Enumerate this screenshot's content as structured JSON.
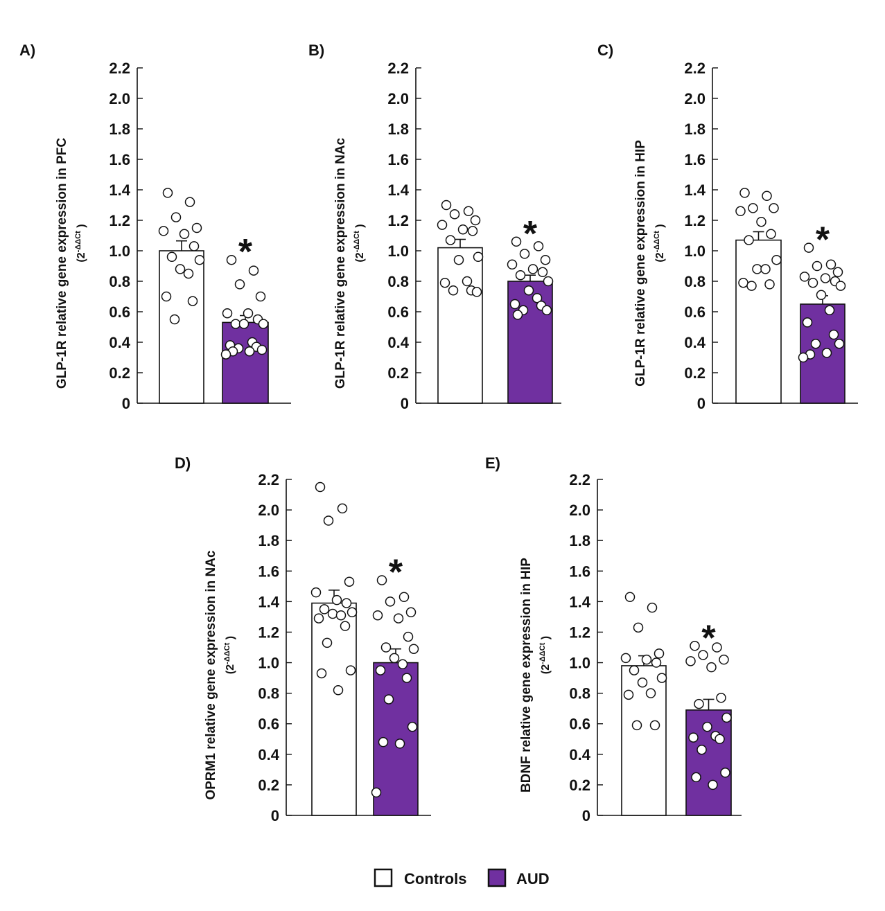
{
  "chart_data": [
    {
      "type": "bar",
      "panel_label": "A)",
      "ylabel": "GLP-1R relative gene expression in PFC",
      "yunit_base": "(2",
      "yunit_sup": "-ΔΔCt",
      "yunit_close": " )",
      "ylim": [
        0,
        2.2
      ],
      "yticks": [
        "0",
        "0.2",
        "0.4",
        "0.6",
        "0.8",
        "1.0",
        "1.2",
        "1.4",
        "1.6",
        "1.8",
        "2.0",
        "2.2"
      ],
      "categories": [
        "Controls",
        "AUD"
      ],
      "values": [
        1.0,
        0.53
      ],
      "sem": [
        0.065,
        0.045
      ],
      "significance": [
        null,
        "*"
      ],
      "points": [
        [
          1.38,
          1.32,
          1.22,
          1.15,
          1.13,
          1.11,
          1.03,
          0.96,
          0.94,
          0.88,
          0.85,
          0.7,
          0.67,
          0.55
        ],
        [
          0.94,
          0.87,
          0.78,
          0.7,
          0.59,
          0.59,
          0.55,
          0.52,
          0.52,
          0.52,
          0.4,
          0.38,
          0.37,
          0.36,
          0.35,
          0.34,
          0.34,
          0.32
        ]
      ]
    },
    {
      "type": "bar",
      "panel_label": "B)",
      "ylabel": "GLP-1R relative gene expression in NAc",
      "yunit_base": "(2",
      "yunit_sup": "-ΔΔCt",
      "yunit_close": " )",
      "ylim": [
        0,
        2.2
      ],
      "yticks": [
        "0",
        "0.2",
        "0.4",
        "0.6",
        "0.8",
        "1.0",
        "1.2",
        "1.4",
        "1.6",
        "1.8",
        "2.0",
        "2.2"
      ],
      "categories": [
        "Controls",
        "AUD"
      ],
      "values": [
        1.02,
        0.8
      ],
      "sem": [
        0.055,
        0.04
      ],
      "significance": [
        null,
        "*"
      ],
      "points": [
        [
          1.3,
          1.26,
          1.24,
          1.2,
          1.17,
          1.14,
          1.13,
          1.07,
          0.96,
          0.94,
          0.8,
          0.79,
          0.74,
          0.74,
          0.73
        ],
        [
          1.06,
          1.03,
          0.98,
          0.94,
          0.91,
          0.88,
          0.86,
          0.84,
          0.8,
          0.74,
          0.69,
          0.65,
          0.64,
          0.61,
          0.61,
          0.58
        ]
      ]
    },
    {
      "type": "bar",
      "panel_label": "C)",
      "ylabel": "GLP-1R relative gene expression in HIP",
      "yunit_base": "(2",
      "yunit_sup": "-ΔΔCt",
      "yunit_close": " )",
      "ylim": [
        0,
        2.2
      ],
      "yticks": [
        "0",
        "0.2",
        "0.4",
        "0.6",
        "0.8",
        "1.0",
        "1.2",
        "1.4",
        "1.6",
        "1.8",
        "2.0",
        "2.2"
      ],
      "categories": [
        "Controls",
        "AUD"
      ],
      "values": [
        1.07,
        0.65
      ],
      "sem": [
        0.055,
        0.055
      ],
      "significance": [
        null,
        "*"
      ],
      "points": [
        [
          1.38,
          1.36,
          1.28,
          1.28,
          1.26,
          1.19,
          1.11,
          1.07,
          0.94,
          0.88,
          0.88,
          0.79,
          0.78,
          0.77
        ],
        [
          1.02,
          0.91,
          0.9,
          0.86,
          0.83,
          0.82,
          0.8,
          0.79,
          0.77,
          0.71,
          0.61,
          0.53,
          0.45,
          0.39,
          0.39,
          0.32,
          0.33,
          0.3
        ]
      ]
    },
    {
      "type": "bar",
      "panel_label": "D)",
      "ylabel": "OPRM1 relative gene expression in NAc",
      "yunit_base": "(2",
      "yunit_sup": "-ΔΔCt",
      "yunit_close": " )",
      "ylim": [
        0,
        2.2
      ],
      "yticks": [
        "0",
        "0.2",
        "0.4",
        "0.6",
        "0.8",
        "1.0",
        "1.2",
        "1.4",
        "1.6",
        "1.8",
        "2.0",
        "2.2"
      ],
      "categories": [
        "Controls",
        "AUD"
      ],
      "values": [
        1.39,
        1.0
      ],
      "sem": [
        0.085,
        0.09
      ],
      "significance": [
        null,
        "*"
      ],
      "points": [
        [
          2.15,
          2.01,
          1.93,
          1.53,
          1.46,
          1.41,
          1.39,
          1.35,
          1.33,
          1.32,
          1.31,
          1.29,
          1.24,
          1.13,
          0.95,
          0.93,
          0.82
        ],
        [
          1.54,
          1.43,
          1.4,
          1.33,
          1.31,
          1.29,
          1.17,
          1.1,
          1.09,
          1.03,
          0.99,
          0.95,
          0.9,
          0.76,
          0.58,
          0.48,
          0.47,
          0.15
        ]
      ]
    },
    {
      "type": "bar",
      "panel_label": "E)",
      "ylabel": "BDNF relative gene expression in HIP",
      "yunit_base": "(2",
      "yunit_sup": "-ΔΔCt",
      "yunit_close": " )",
      "ylim": [
        0,
        2.2
      ],
      "yticks": [
        "0",
        "0.2",
        "0.4",
        "0.6",
        "0.8",
        "1.0",
        "1.2",
        "1.4",
        "1.6",
        "1.8",
        "2.0",
        "2.2"
      ],
      "categories": [
        "Controls",
        "AUD"
      ],
      "values": [
        0.98,
        0.69
      ],
      "sem": [
        0.065,
        0.07
      ],
      "significance": [
        null,
        "*"
      ],
      "points": [
        [
          1.43,
          1.36,
          1.23,
          1.06,
          1.03,
          1.02,
          1.0,
          0.95,
          0.9,
          0.87,
          0.8,
          0.79,
          0.59,
          0.59
        ],
        [
          1.11,
          1.1,
          1.05,
          1.02,
          1.01,
          0.97,
          0.77,
          0.73,
          0.64,
          0.58,
          0.52,
          0.51,
          0.5,
          0.43,
          0.28,
          0.25,
          0.2
        ]
      ]
    }
  ],
  "legend": {
    "entries": [
      {
        "label": "Controls",
        "color": "#ffffff"
      },
      {
        "label": "AUD",
        "color": "#7030a0"
      }
    ],
    "placement": "bottom-center"
  },
  "colors": {
    "controls": "#ffffff",
    "aud": "#7030a0",
    "stroke": "#111111"
  }
}
